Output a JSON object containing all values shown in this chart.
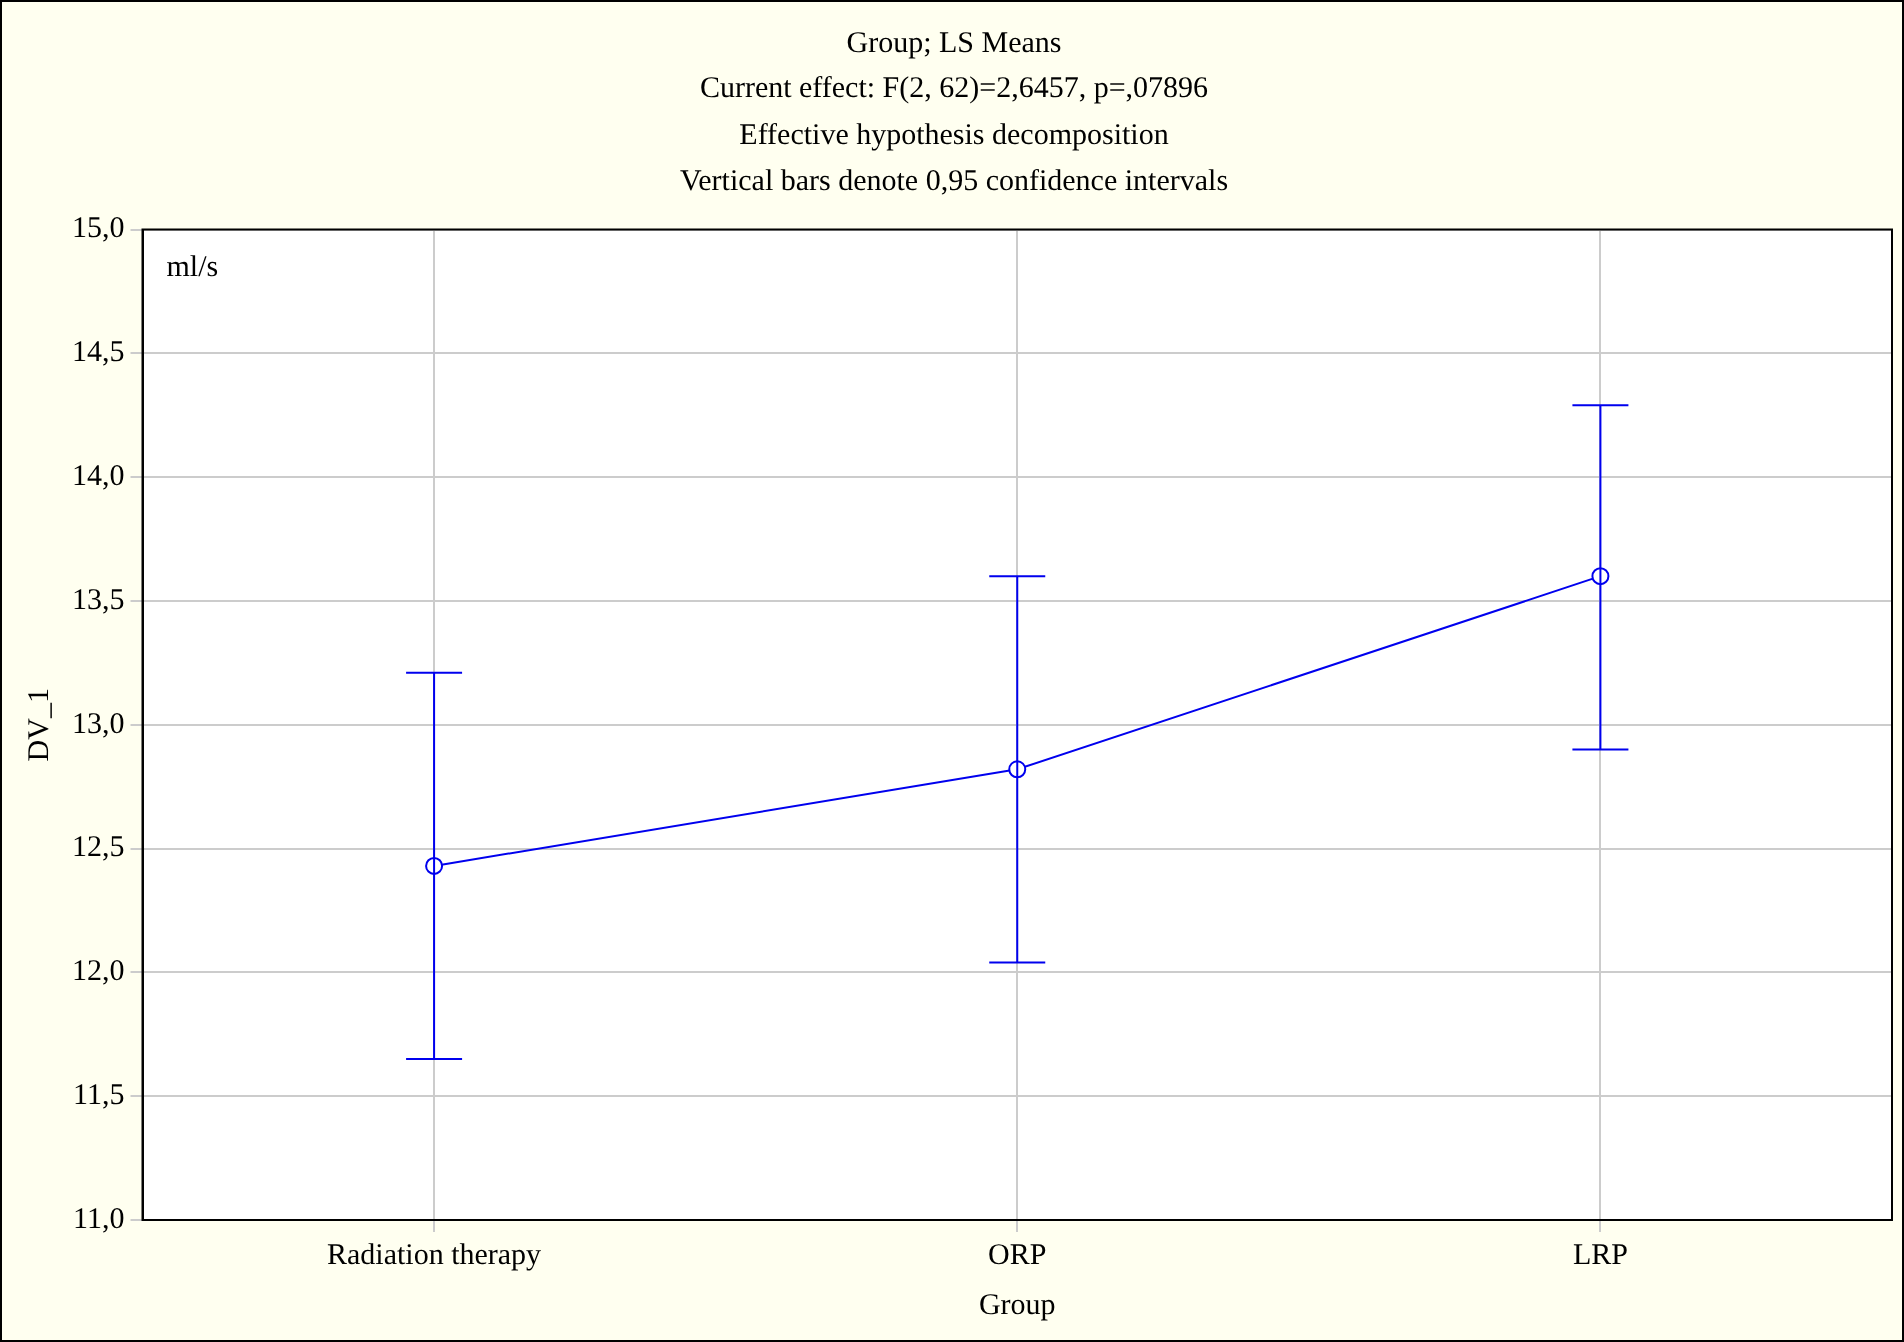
{
  "chart_data": {
    "type": "line",
    "title": "Group; LS Means",
    "subtitle": "Current effect: F(2, 62)=2,6457, p=,07896\nEffective hypothesis decomposition\nVertical bars denote 0,95 confidence intervals",
    "xlabel": "Group",
    "ylabel": "DV_1",
    "annotations": [
      "ml/s"
    ],
    "categories": [
      "Radiation therapy",
      "ORP",
      "LRP"
    ],
    "series": [
      {
        "color": "#0000ee",
        "values": [
          12.43,
          12.82,
          13.6
        ],
        "errors": [
          [
            11.65,
            13.21
          ],
          [
            12.04,
            13.6
          ],
          [
            12.9,
            14.29
          ]
        ]
      }
    ],
    "ylim": [
      11,
      15
    ],
    "yticks": [
      {
        "value": 11,
        "label": "11,0"
      },
      {
        "value": 11.5,
        "label": "11,5"
      },
      {
        "value": 12,
        "label": "12,0"
      },
      {
        "value": 12.5,
        "label": "12,5"
      },
      {
        "value": 13,
        "label": "13,0"
      },
      {
        "value": 13.5,
        "label": "13,5"
      },
      {
        "value": 14,
        "label": "14,0"
      },
      {
        "value": 14.5,
        "label": "14,5"
      },
      {
        "value": 15,
        "label": "15,0"
      }
    ],
    "grid": true,
    "legend": false,
    "marker": "circle",
    "line_style": "solid"
  }
}
